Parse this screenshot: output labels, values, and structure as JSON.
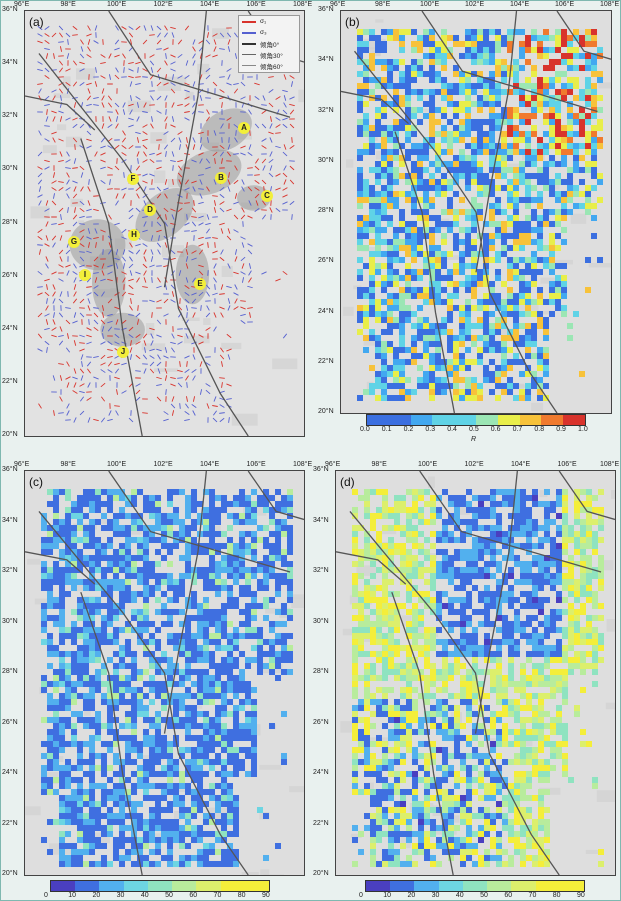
{
  "panels": [
    {
      "tag": "(a)",
      "name": "panel-a"
    },
    {
      "tag": "(b)",
      "name": "panel-b"
    },
    {
      "tag": "(c)",
      "name": "panel-c"
    },
    {
      "tag": "(d)",
      "name": "panel-d"
    }
  ],
  "lon_ticks": [
    "96°E",
    "98°E",
    "100°E",
    "102°E",
    "104°E",
    "106°E",
    "108°E"
  ],
  "lat_ticks_top": [
    "36°N",
    "34°N",
    "32°N",
    "30°N",
    "28°N",
    "26°N",
    "24°N",
    "22°N",
    "20°N"
  ],
  "lat_ticks_bottom": [
    "36°N",
    "34°N",
    "32°N",
    "30°N",
    "28°N",
    "26°N",
    "24°N",
    "22°N",
    "20°N"
  ],
  "legend_a": {
    "sigma1": "σ₁",
    "sigma3": "σ₃",
    "dip0": "倾角0°",
    "dip30": "倾角30°",
    "dip60": "倾角60°"
  },
  "region_labels": [
    "A",
    "B",
    "C",
    "D",
    "E",
    "F",
    "G",
    "H",
    "I",
    "J"
  ],
  "colorbar_b": {
    "ticks": [
      "0.0",
      "0.1",
      "0.2",
      "0.3",
      "0.4",
      "0.5",
      "0.6",
      "0.7",
      "0.8",
      "0.9",
      "1.0"
    ],
    "title": "R"
  },
  "colorbar_cd": {
    "ticks": [
      "0",
      "10",
      "20",
      "30",
      "40",
      "50",
      "60",
      "70",
      "80",
      "90"
    ]
  },
  "colors": {
    "blue_dark": "#3a3fb5",
    "cyan": "#5fd3e6",
    "yellow": "#f4ee3a",
    "red": "#d8332c"
  }
}
